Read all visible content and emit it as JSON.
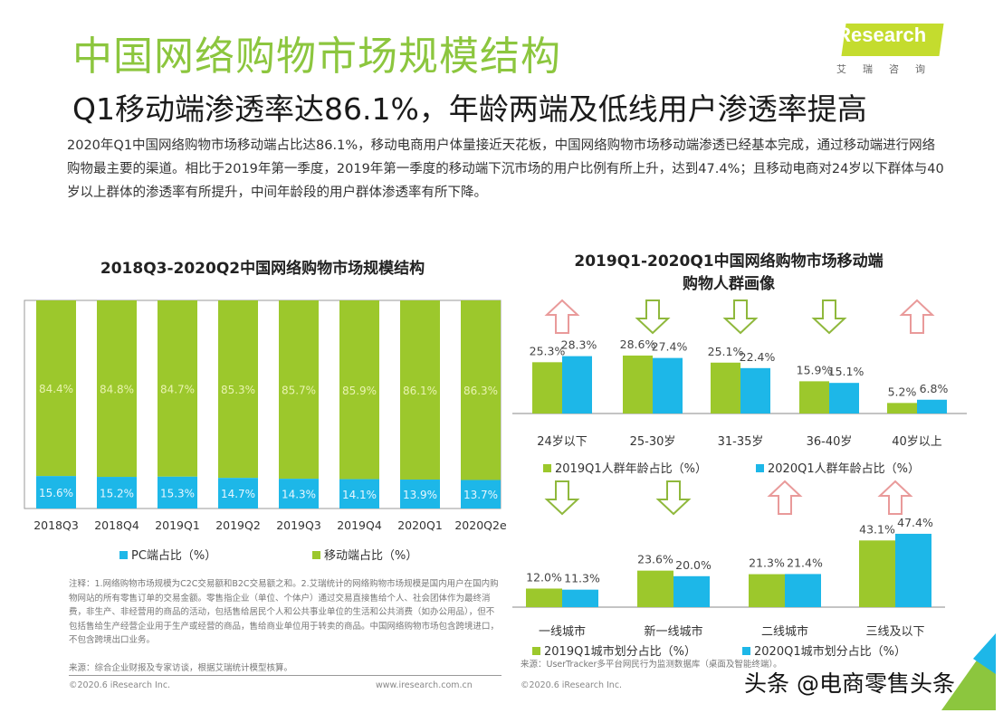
{
  "header": {
    "title": "中国网络购物市场规模结构",
    "subtitle": "Q1移动端渗透率达86.1%，年龄两端及低线用户渗透率提高",
    "paragraph": "2020年Q1中国网络购物市场移动端占比达86.1%，移动电商用户体量接近天花板，中国网络购物市场移动端渗透已经基本完成，通过移动端进行网络购物最主要的渠道。相比于2019年第一季度，2019年第一季度的移动端下沉市场的用户比例有所上升，达到47.4%；且移动电商对24岁以下群体与40岁以上群体的渗透率有所提升，中间年龄段的用户群体渗透率有所下降。"
  },
  "logo": {
    "text": "iResearch",
    "subtext": "艾瑞咨询",
    "color": "#c4dc2e"
  },
  "colors": {
    "green": "#9cc82c",
    "blue": "#1db7e8",
    "title_green": "#8cc63e",
    "arrow_up": "#e99a9a",
    "arrow_down": "#8fb83c"
  },
  "chart_data": [
    {
      "type": "bar",
      "stacked": true,
      "title": "2018Q3-2020Q2中国网络购物市场规模结构",
      "categories": [
        "2018Q3",
        "2018Q4",
        "2019Q1",
        "2019Q2",
        "2019Q3",
        "2019Q4",
        "2020Q1",
        "2020Q2e"
      ],
      "series": [
        {
          "name": "PC端占比（%）",
          "color": "#1db7e8",
          "values": [
            15.6,
            15.2,
            15.3,
            14.7,
            14.3,
            14.1,
            13.9,
            13.7
          ],
          "labels": [
            "15.6%",
            "15.2%",
            "15.3%",
            "14.7%",
            "14.3%",
            "14.1%",
            "13.9%",
            "13.7%"
          ]
        },
        {
          "name": "移动端占比（%）",
          "color": "#9cc82c",
          "values": [
            84.4,
            84.8,
            84.7,
            85.3,
            85.7,
            85.9,
            86.1,
            86.3
          ],
          "labels": [
            "84.4%",
            "84.8%",
            "84.7%",
            "85.3%",
            "85.7%",
            "85.9%",
            "86.1%",
            "86.3%"
          ]
        }
      ],
      "ylim": [
        0,
        100
      ],
      "legend": "bottom",
      "note": "注释：1.网络购物市场规模为C2C交易额和B2C交易额之和。2.艾瑞统计的网络购物市场规模是国内用户在国内购物网站的所有零售订单的交易金额。零售指企业（单位、个体户）通过交易直接售给个人、社会团体作为最终消费，非生产、非经营用的商品的活动，包括售给居民个人和公共事业单位的生活和公共消费（如办公用品），但不包括售给生产经营企业用于生产或经营的商品，售给商业单位用于转卖的商品。中国网络购物市场包含跨境进口，不包含跨境出口业务。",
      "source": "来源：综合企业财报及专家访谈，根据艾瑞统计模型核算。",
      "copyright": "©2020.6 iResearch Inc.",
      "website": "www.iresearch.com.cn"
    },
    {
      "type": "bar",
      "title": "2019Q1-2020Q1中国网络购物市场移动端购物人群画像",
      "title_lines": [
        "2019Q1-2020Q1中国网络购物市场移动端",
        "购物人群画像"
      ],
      "categories": [
        "24岁以下",
        "25-30岁",
        "31-35岁",
        "36-40岁",
        "40岁以上"
      ],
      "series": [
        {
          "name": "2019Q1人群年龄占比（%）",
          "color": "#9cc82c",
          "values": [
            25.3,
            28.6,
            25.1,
            15.9,
            5.2
          ],
          "labels": [
            "25.3%",
            "28.6%",
            "25.1%",
            "15.9%",
            "5.2%"
          ]
        },
        {
          "name": "2020Q1人群年龄占比（%）",
          "color": "#1db7e8",
          "values": [
            28.3,
            27.4,
            22.4,
            15.1,
            6.8
          ],
          "labels": [
            "28.3%",
            "27.4%",
            "22.4%",
            "15.1%",
            "6.8%"
          ]
        }
      ],
      "legend": "bottom"
    },
    {
      "type": "bar",
      "categories": [
        "一线城市",
        "新一线城市",
        "二线城市",
        "三线及以下"
      ],
      "series": [
        {
          "name": "2019Q1城市划分占比（%）",
          "color": "#9cc82c",
          "values": [
            12.0,
            23.6,
            21.3,
            43.1
          ],
          "labels": [
            "12.0%",
            "23.6%",
            "21.3%",
            "43.1%"
          ]
        },
        {
          "name": "2020Q1城市划分占比（%）",
          "color": "#1db7e8",
          "values": [
            11.3,
            20.0,
            21.4,
            47.4
          ],
          "labels": [
            "11.3%",
            "20.0%",
            "21.4%",
            "47.4%"
          ]
        }
      ],
      "legend": "bottom",
      "source": "来源：UserTracker多平台网民行为监测数据库（桌面及智能终端）。",
      "copyright": "©2020.6 iResearch Inc."
    }
  ],
  "watermark": "头条 @电商零售头条"
}
